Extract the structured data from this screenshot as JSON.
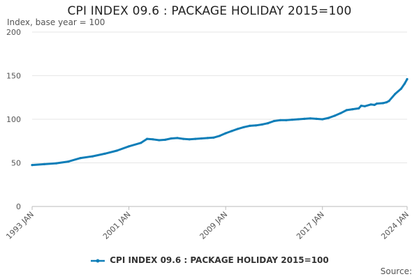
{
  "chart_data": {
    "type": "line",
    "title": "CPI INDEX 09.6 : PACKAGE HOLIDAY 2015=100",
    "ylabel": "Index, base year = 100",
    "xlabel": "",
    "ylim": [
      0,
      200
    ],
    "yticks": [
      0,
      50,
      100,
      150,
      200
    ],
    "xlim": [
      1993,
      2024
    ],
    "xticks": [
      {
        "value": 1993,
        "label": "1993 JAN"
      },
      {
        "value": 2001,
        "label": "2001 JAN"
      },
      {
        "value": 2009,
        "label": "2009 JAN"
      },
      {
        "value": 2017,
        "label": "2017 JAN"
      },
      {
        "value": 2024,
        "label": "2024 JAN"
      }
    ],
    "grid": true,
    "legend_position": "bottom",
    "series": [
      {
        "name": "CPI INDEX 09.6 : PACKAGE HOLIDAY 2015=100",
        "color": "#0f7eb8",
        "x": [
          1993.0,
          1994.0,
          1995.0,
          1996.0,
          1997.0,
          1998.0,
          1999.0,
          2000.0,
          2001.0,
          2002.0,
          2002.5,
          2003.0,
          2003.5,
          2004.0,
          2004.5,
          2005.0,
          2005.5,
          2006.0,
          2006.5,
          2007.0,
          2007.5,
          2008.0,
          2008.5,
          2009.0,
          2009.5,
          2010.0,
          2010.5,
          2011.0,
          2011.5,
          2012.0,
          2012.5,
          2013.0,
          2013.5,
          2014.0,
          2014.5,
          2015.0,
          2015.5,
          2016.0,
          2016.5,
          2017.0,
          2017.5,
          2018.0,
          2018.5,
          2019.0,
          2019.5,
          2020.0,
          2020.2,
          2020.5,
          2021.0,
          2021.3,
          2021.5,
          2022.0,
          2022.3,
          2022.5,
          2023.0,
          2023.5,
          2023.8,
          2024.0
        ],
        "values": [
          47.5,
          48.5,
          49.5,
          51.5,
          55.5,
          57.5,
          60.5,
          64.0,
          69.0,
          73.0,
          77.5,
          77.0,
          76.0,
          76.5,
          78.0,
          78.5,
          77.5,
          77.0,
          77.5,
          78.0,
          78.5,
          79.0,
          81.0,
          84.0,
          86.5,
          89.0,
          91.0,
          92.5,
          93.0,
          94.0,
          95.5,
          98.0,
          99.0,
          99.0,
          99.5,
          100.0,
          100.5,
          101.0,
          100.5,
          100.0,
          101.5,
          104.0,
          107.0,
          110.5,
          111.5,
          112.5,
          115.5,
          115.0,
          117.0,
          116.5,
          118.0,
          118.5,
          119.5,
          121.0,
          129.0,
          135.0,
          141.0,
          146.0
        ]
      }
    ]
  },
  "source_label": "Source:"
}
